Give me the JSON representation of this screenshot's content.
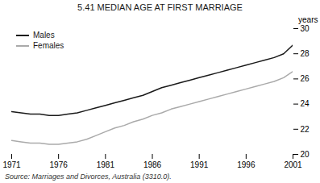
{
  "chart_data": {
    "type": "line",
    "title": "5.41   MEDIAN AGE AT FIRST MARRIAGE",
    "ylabel": "years",
    "source": "Source: Marriages and Divorces, Australia (3310.0).",
    "x": [
      1971,
      1972,
      1973,
      1974,
      1975,
      1976,
      1977,
      1978,
      1979,
      1980,
      1981,
      1982,
      1983,
      1984,
      1985,
      1986,
      1987,
      1988,
      1989,
      1990,
      1991,
      1992,
      1993,
      1994,
      1995,
      1996,
      1997,
      1998,
      1999,
      2000,
      2001
    ],
    "series": [
      {
        "name": "Males",
        "color": "#1a1a1a",
        "values": [
          23.4,
          23.3,
          23.2,
          23.2,
          23.1,
          23.1,
          23.2,
          23.3,
          23.5,
          23.7,
          23.9,
          24.1,
          24.3,
          24.5,
          24.7,
          25.0,
          25.3,
          25.5,
          25.7,
          25.9,
          26.1,
          26.3,
          26.5,
          26.7,
          26.9,
          27.1,
          27.3,
          27.5,
          27.7,
          28.0,
          28.7
        ]
      },
      {
        "name": "Females",
        "color": "#aaaaaa",
        "values": [
          21.1,
          21.0,
          20.9,
          20.9,
          20.8,
          20.8,
          20.9,
          21.0,
          21.2,
          21.5,
          21.8,
          22.1,
          22.3,
          22.6,
          22.8,
          23.1,
          23.3,
          23.6,
          23.8,
          24.0,
          24.2,
          24.4,
          24.6,
          24.8,
          25.0,
          25.2,
          25.4,
          25.6,
          25.8,
          26.1,
          26.6
        ]
      }
    ],
    "xlim": [
      1971,
      2001
    ],
    "ylim": [
      20,
      30
    ],
    "xticks": [
      1971,
      1976,
      1981,
      1986,
      1991,
      1996,
      2001
    ],
    "yticks": [
      20,
      22,
      24,
      26,
      28,
      30
    ],
    "grid": false,
    "legend": "upper left"
  }
}
